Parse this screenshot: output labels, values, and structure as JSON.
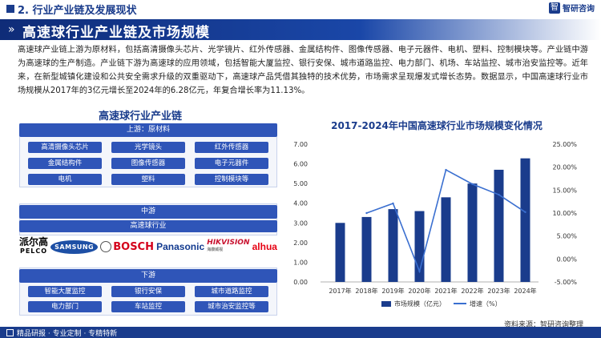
{
  "header": {
    "section": "2. 行业产业链及发展现状",
    "logo_mark": "智",
    "logo_text": "智研咨询"
  },
  "title": "高速球行业产业链及市场规模",
  "paragraph": "高速球产业链上游为原材料，包括高清摄像头芯片、光学镜片、红外传感器、金属结构件、图像传感器、电子元器件、电机、塑料、控制模块等。产业链中游为高速球的生产制造。产业链下游为高速球的应用领域，包括智能大厦监控、银行安保、城市道路监控、电力部门、机场、车站监控、城市治安监控等。近年来，在新型城镇化建设和公共安全需求升级的双重驱动下，高速球产品凭借其独特的技术优势，市场需求呈现爆发式增长态势。数据显示，中国高速球行业市场规模从2017年的3亿元增长至2024年的6.28亿元，年复合增长率为11.13%。",
  "chain": {
    "title": "高速球行业产业链",
    "upstream_label": "上游：原材料",
    "upstream_items": [
      "高清摄像头芯片",
      "光学镜头",
      "红外传感器",
      "金属结构件",
      "图像传感器",
      "电子元器件",
      "电机",
      "塑料",
      "控制模块等"
    ],
    "midstream_label": "中游",
    "industry_label": "高速球行业",
    "brands": {
      "pelco_cn": "派尔高",
      "pelco_en": "PELCO",
      "samsung": "SAMSUNG",
      "bosch": "BOSCH",
      "panasonic": "Panasonic",
      "hikvision": "HIKVISION",
      "hikvision_sub": "海康威视",
      "dahua": "alhua"
    },
    "downstream_label": "下游",
    "downstream_items": [
      "智能大厦监控",
      "银行安保",
      "城市道路监控",
      "电力部门",
      "车站监控",
      "城市治安监控等"
    ]
  },
  "chart_data": {
    "type": "bar",
    "title": "2017-2024年中国高速球行业市场规模变化情况",
    "categories": [
      "2017年",
      "2018年",
      "2019年",
      "2020年",
      "2021年",
      "2022年",
      "2023年",
      "2024年"
    ],
    "series": [
      {
        "name": "市场规模（亿元）",
        "type": "bar",
        "axis": "left",
        "values": [
          3.0,
          3.3,
          3.7,
          3.6,
          4.3,
          5.0,
          5.7,
          6.28
        ]
      },
      {
        "name": "增速（%）",
        "type": "line",
        "axis": "right",
        "values": [
          null,
          10.0,
          12.1,
          -2.7,
          19.4,
          16.3,
          14.0,
          10.2
        ]
      }
    ],
    "y_left": {
      "min": 0,
      "max": 7,
      "ticks": [
        "0.00",
        "1.00",
        "2.00",
        "3.00",
        "4.00",
        "5.00",
        "6.00",
        "7.00"
      ]
    },
    "y_right": {
      "min": -5,
      "max": 25,
      "ticks": [
        "-5.00%",
        "0.00%",
        "5.00%",
        "10.00%",
        "15.00%",
        "20.00%",
        "25.00%"
      ]
    },
    "legend_position": "bottom",
    "bar_color": "#1a3c8c",
    "line_color": "#3a6fd0"
  },
  "source": "资料来源：智研咨询整理",
  "footer": "精品研报 · 专业定制 · 专精特新"
}
